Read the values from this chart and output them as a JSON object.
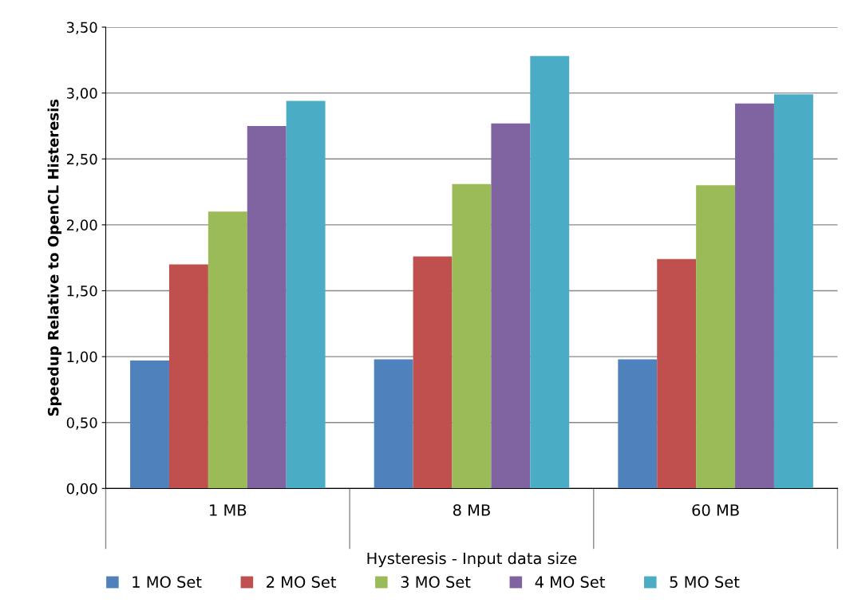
{
  "chart_data": {
    "type": "bar",
    "xlabel": "Hysteresis - Input data size",
    "ylabel": "Speedup Relative to OpenCL Histeresis",
    "categories": [
      "1 MB",
      "8 MB",
      "60 MB"
    ],
    "series": [
      {
        "name": "1 MO Set",
        "color": "#4f81bd",
        "values": [
          0.97,
          0.98,
          0.98
        ]
      },
      {
        "name": "2 MO Set",
        "color": "#c0504d",
        "values": [
          1.7,
          1.76,
          1.74
        ]
      },
      {
        "name": "3 MO Set",
        "color": "#9bbb59",
        "values": [
          2.1,
          2.31,
          2.3
        ]
      },
      {
        "name": "4 MO Set",
        "color": "#8064a2",
        "values": [
          2.75,
          2.77,
          2.92
        ]
      },
      {
        "name": "5 MO Set",
        "color": "#4bacc6",
        "values": [
          2.94,
          3.28,
          2.99
        ]
      }
    ],
    "ylim": [
      0,
      3.5
    ],
    "yticks": [
      {
        "value": 0,
        "label": "0,00"
      },
      {
        "value": 0.5,
        "label": "0,50"
      },
      {
        "value": 1,
        "label": "1,00"
      },
      {
        "value": 1.5,
        "label": "1,50"
      },
      {
        "value": 2,
        "label": "2,00"
      },
      {
        "value": 2.5,
        "label": "2,50"
      },
      {
        "value": 3,
        "label": "3,00"
      },
      {
        "value": 3.5,
        "label": "3,50"
      }
    ],
    "grid": "y",
    "legend": "bottom"
  }
}
